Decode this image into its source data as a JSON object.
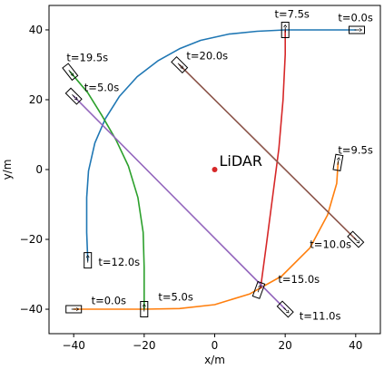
{
  "chart_data": {
    "type": "line",
    "xlabel": "x/m",
    "ylabel": "y/m",
    "xlim": [
      -47,
      47
    ],
    "ylim": [
      -47,
      47
    ],
    "x_ticks": [
      -40,
      -20,
      0,
      20,
      40
    ],
    "y_ticks": [
      -40,
      -20,
      0,
      20,
      40
    ],
    "grid": false,
    "center_point": {
      "label": "LiDAR",
      "x": 0,
      "y": 0,
      "color": "#d62728"
    },
    "series": [
      {
        "color": "#1f77b4",
        "points": [
          [
            40,
            40
          ],
          [
            30,
            40
          ],
          [
            20,
            40
          ],
          [
            12,
            39.6
          ],
          [
            4,
            38.8
          ],
          [
            -4,
            37.0
          ],
          [
            -10,
            34.6
          ],
          [
            -16,
            31.2
          ],
          [
            -22,
            26.6
          ],
          [
            -27,
            21.0
          ],
          [
            -31,
            14.6
          ],
          [
            -34,
            7.6
          ],
          [
            -35.8,
            -0.4
          ],
          [
            -36.3,
            -8
          ],
          [
            -36.3,
            -18
          ],
          [
            -36,
            -26
          ]
        ]
      },
      {
        "color": "#ff7f0e",
        "points": [
          [
            -40,
            -40
          ],
          [
            -30,
            -40
          ],
          [
            -20,
            -40
          ],
          [
            -10,
            -39.8
          ],
          [
            0,
            -38.7
          ],
          [
            10,
            -35.6
          ],
          [
            19,
            -30.5
          ],
          [
            27,
            -22.5
          ],
          [
            32,
            -13
          ],
          [
            34.6,
            -4
          ],
          [
            35,
            2
          ]
        ]
      },
      {
        "color": "#2ca02c",
        "points": [
          [
            -41,
            28
          ],
          [
            -36,
            22
          ],
          [
            -32,
            15.5
          ],
          [
            -28,
            8.5
          ],
          [
            -24.5,
            1
          ],
          [
            -21.8,
            -8
          ],
          [
            -20.3,
            -18
          ],
          [
            -20,
            -28
          ],
          [
            -20,
            -40
          ]
        ]
      },
      {
        "color": "#d62728",
        "points": [
          [
            20,
            40
          ],
          [
            20,
            33
          ],
          [
            19.4,
            20
          ],
          [
            18.2,
            6
          ],
          [
            16.4,
            -8
          ],
          [
            14.6,
            -22
          ],
          [
            13,
            -34
          ]
        ]
      },
      {
        "color": "#9467bd",
        "points": [
          [
            -40,
            21
          ],
          [
            20,
            -40
          ]
        ]
      },
      {
        "color": "#8c564b",
        "points": [
          [
            -10,
            30
          ],
          [
            40,
            -20
          ]
        ]
      }
    ],
    "annotations": [
      {
        "text": "t=0.0s",
        "x": 35,
        "y": 42.5
      },
      {
        "text": "t=7.5s",
        "x": 17,
        "y": 43.5
      },
      {
        "text": "t=20.0s",
        "x": -8,
        "y": 31.5
      },
      {
        "text": "t=19.5s",
        "x": -42,
        "y": 31
      },
      {
        "text": "t=5.0s",
        "x": -37,
        "y": 22.5
      },
      {
        "text": "t=9.5s",
        "x": 35,
        "y": 4.5
      },
      {
        "text": "t=10.0s",
        "x": 27,
        "y": -22.5
      },
      {
        "text": "t=12.0s",
        "x": -33,
        "y": -27.5
      },
      {
        "text": "t=15.0s",
        "x": 18,
        "y": -32.5
      },
      {
        "text": "t=5.0s",
        "x": -16,
        "y": -37.5
      },
      {
        "text": "t=0.0s",
        "x": -35,
        "y": -38.5
      },
      {
        "text": "t=11.0s",
        "x": 24,
        "y": -43
      }
    ],
    "markers": [
      {
        "x": 40.3,
        "y": 40,
        "angle": 0
      },
      {
        "x": 20,
        "y": 40,
        "angle": 90
      },
      {
        "x": -10,
        "y": 30,
        "angle": -45
      },
      {
        "x": -41,
        "y": 28,
        "angle": -52
      },
      {
        "x": -40,
        "y": 21,
        "angle": -45
      },
      {
        "x": 35,
        "y": 2,
        "angle": 80
      },
      {
        "x": 40,
        "y": -20,
        "angle": -45
      },
      {
        "x": -36,
        "y": -26,
        "angle": 90
      },
      {
        "x": 12.5,
        "y": -34.5,
        "angle": 70
      },
      {
        "x": -20,
        "y": -40,
        "angle": 90
      },
      {
        "x": -40,
        "y": -40,
        "angle": 0
      },
      {
        "x": 20,
        "y": -40,
        "angle": -45
      }
    ]
  }
}
